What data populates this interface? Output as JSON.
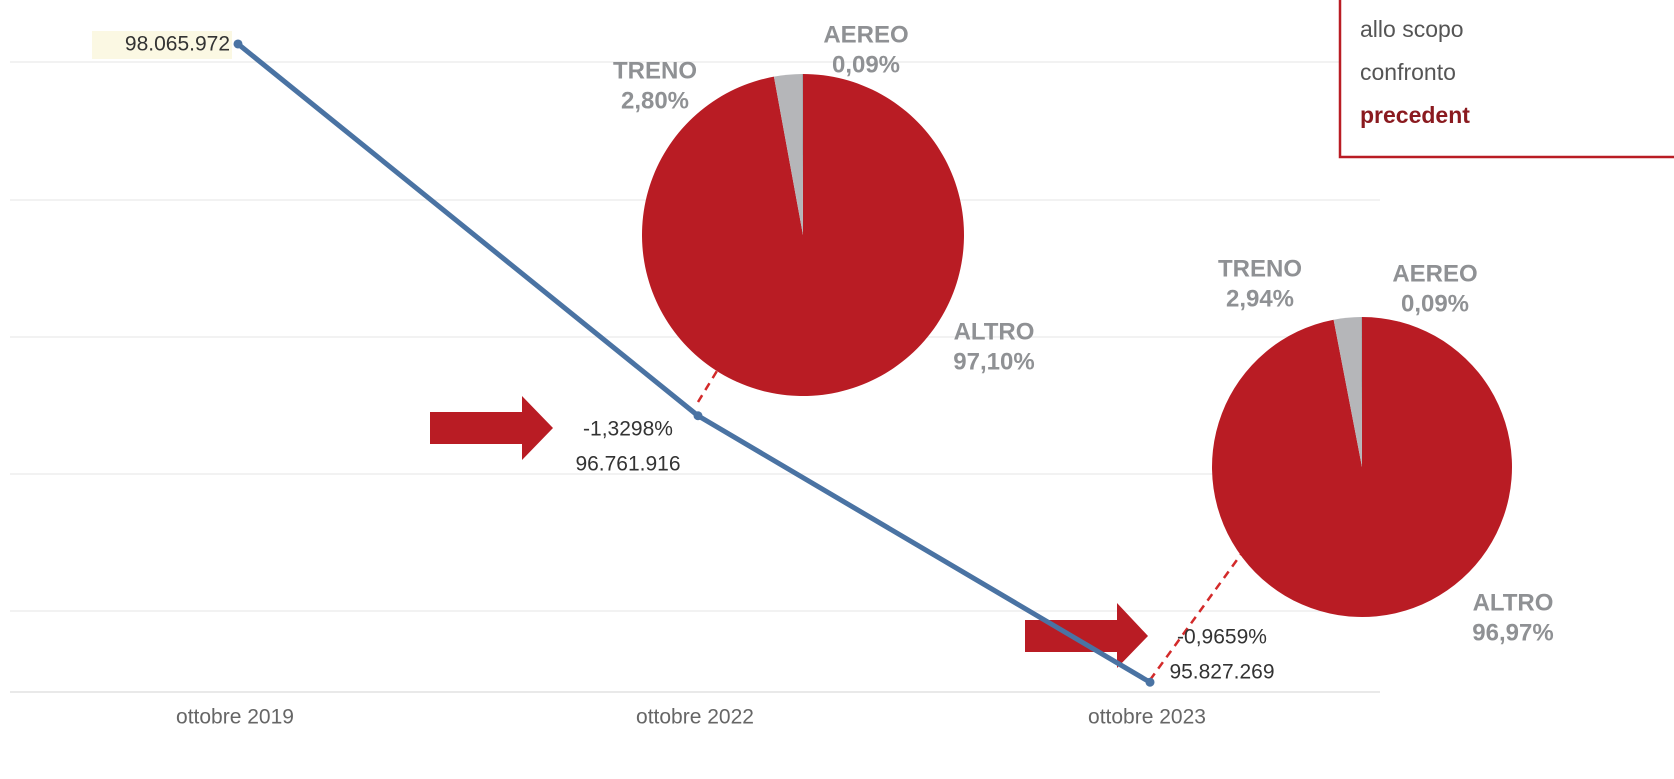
{
  "chart_data": [
    {
      "type": "line",
      "categories": [
        "ottobre 2019",
        "ottobre 2022",
        "ottobre 2023"
      ],
      "values": [
        98065972,
        96761916,
        95827269
      ],
      "value_labels": [
        "98.065.972",
        "96.761.916",
        "95.827.269"
      ],
      "change_labels": [
        null,
        "-1,3298%",
        "-0,9659%"
      ],
      "color": "#4a73a3",
      "ylim": [
        95800000,
        98150000
      ]
    },
    {
      "type": "pie",
      "categories": [
        "ALTRO",
        "TRENO",
        "AEREO"
      ],
      "values": [
        97.1,
        2.8,
        0.09
      ],
      "value_labels": [
        "97,10%",
        "2,80%",
        "0,09%"
      ],
      "colors": [
        "#b91c24",
        "#b5b6b9",
        "#9a9b9e"
      ]
    },
    {
      "type": "pie",
      "categories": [
        "ALTRO",
        "TRENO",
        "AEREO"
      ],
      "values": [
        96.97,
        2.94,
        0.09
      ],
      "value_labels": [
        "96,97%",
        "2,94%",
        "0,09%"
      ],
      "colors": [
        "#b91c24",
        "#b5b6b9",
        "#9a9b9e"
      ]
    }
  ],
  "text_box": {
    "lines": [
      "allo scopo",
      "confronto",
      "precedent"
    ]
  }
}
